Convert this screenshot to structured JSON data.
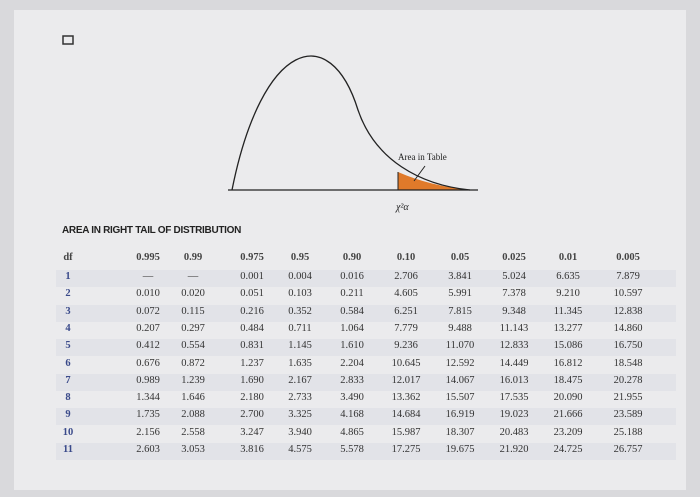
{
  "figure": {
    "callout": "Area in Table",
    "axis_label": "χ²α"
  },
  "table": {
    "title": "AREA IN RIGHT TAIL OF DISTRIBUTION",
    "header": [
      "df",
      "0.995",
      "0.99",
      "0.975",
      "0.95",
      "0.90",
      "0.10",
      "0.05",
      "0.025",
      "0.01",
      "0.005"
    ],
    "rows": [
      [
        "1",
        "—",
        "—",
        "0.001",
        "0.004",
        "0.016",
        "2.706",
        "3.841",
        "5.024",
        "6.635",
        "7.879"
      ],
      [
        "2",
        "0.010",
        "0.020",
        "0.051",
        "0.103",
        "0.211",
        "4.605",
        "5.991",
        "7.378",
        "9.210",
        "10.597"
      ],
      [
        "3",
        "0.072",
        "0.115",
        "0.216",
        "0.352",
        "0.584",
        "6.251",
        "7.815",
        "9.348",
        "11.345",
        "12.838"
      ],
      [
        "4",
        "0.207",
        "0.297",
        "0.484",
        "0.711",
        "1.064",
        "7.779",
        "9.488",
        "11.143",
        "13.277",
        "14.860"
      ],
      [
        "5",
        "0.412",
        "0.554",
        "0.831",
        "1.145",
        "1.610",
        "9.236",
        "11.070",
        "12.833",
        "15.086",
        "16.750"
      ],
      [
        "6",
        "0.676",
        "0.872",
        "1.237",
        "1.635",
        "2.204",
        "10.645",
        "12.592",
        "14.449",
        "16.812",
        "18.548"
      ],
      [
        "7",
        "0.989",
        "1.239",
        "1.690",
        "2.167",
        "2.833",
        "12.017",
        "14.067",
        "16.013",
        "18.475",
        "20.278"
      ],
      [
        "8",
        "1.344",
        "1.646",
        "2.180",
        "2.733",
        "3.490",
        "13.362",
        "15.507",
        "17.535",
        "20.090",
        "21.955"
      ],
      [
        "9",
        "1.735",
        "2.088",
        "2.700",
        "3.325",
        "4.168",
        "14.684",
        "16.919",
        "19.023",
        "21.666",
        "23.589"
      ],
      [
        "10",
        "2.156",
        "2.558",
        "3.247",
        "3.940",
        "4.865",
        "15.987",
        "18.307",
        "20.483",
        "23.209",
        "25.188"
      ],
      [
        "11",
        "2.603",
        "3.053",
        "3.816",
        "4.575",
        "5.578",
        "17.275",
        "19.675",
        "21.920",
        "24.725",
        "26.757"
      ]
    ]
  }
}
